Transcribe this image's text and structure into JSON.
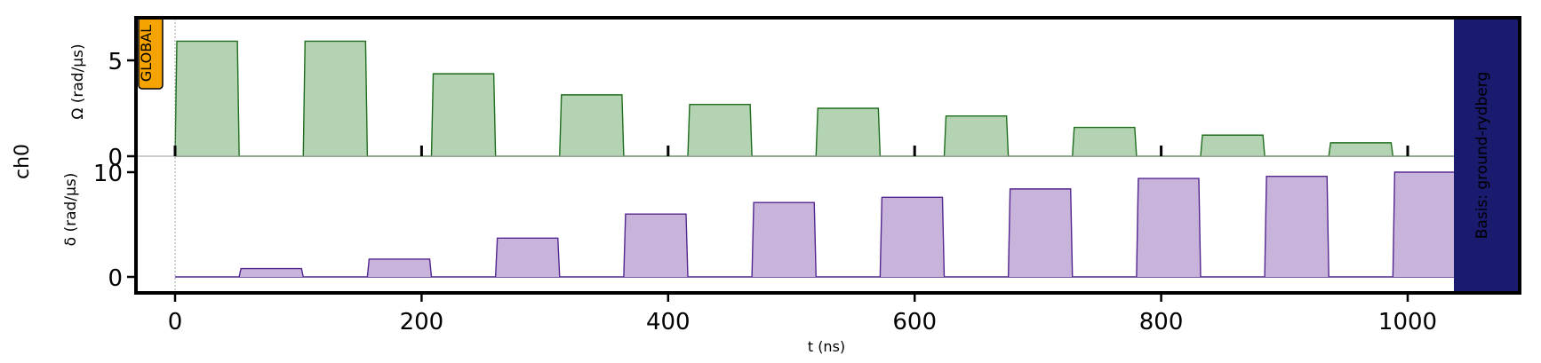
{
  "chart_data": {
    "type": "area",
    "channel_label": "ch0",
    "global_badge": "GLOBAL",
    "basis_label": "Basis: ground-rydberg",
    "xlabel": "t (ns)",
    "xlim": [
      -31,
      1091
    ],
    "x_ticks": [
      0,
      200,
      400,
      600,
      800,
      1000
    ],
    "x_minor_ticks_top": [
      0,
      200,
      400,
      600,
      800,
      1000
    ],
    "grid": false,
    "colors": {
      "omega_fill": "#b3d3b3",
      "omega_line": "#1e6e1e",
      "delta_fill": "#c8b3db",
      "delta_line": "#54278f",
      "global_badge": "#f5a300",
      "basis_band": "#1a1a6e",
      "basis_text": "#ffffff"
    },
    "panels": [
      {
        "name": "Omega",
        "ylabel": "Ω (rad/µs)",
        "ylim": [
          0,
          6.7
        ],
        "y_ticks": [
          0,
          5
        ],
        "pulse_edges_ns": [
          [
            0,
            52,
            104,
            156
          ],
          [
            208,
            260,
            312,
            364
          ],
          [
            416,
            468,
            520,
            572
          ],
          [
            624,
            676,
            728,
            780
          ],
          [
            832,
            884,
            936,
            988
          ]
        ],
        "pulse_edges_note_for_omega": "omega pulses start at 0 and every 104 ns",
        "series": []
      },
      {
        "name": "delta",
        "ylabel": "δ (rad/µs)",
        "ylim": [
          -1.5,
          10.5
        ],
        "y_ticks": [
          0,
          10
        ],
        "series": []
      }
    ],
    "omega_pulses": [
      {
        "start": 0,
        "end": 52,
        "value": 6.0
      },
      {
        "start": 104,
        "end": 156,
        "value": 6.0
      },
      {
        "start": 208,
        "end": 260,
        "value": 4.3
      },
      {
        "start": 312,
        "end": 364,
        "value": 3.2
      },
      {
        "start": 416,
        "end": 468,
        "value": 2.7
      },
      {
        "start": 520,
        "end": 572,
        "value": 2.5
      },
      {
        "start": 624,
        "end": 676,
        "value": 2.1
      },
      {
        "start": 728,
        "end": 780,
        "value": 1.5
      },
      {
        "start": 832,
        "end": 884,
        "value": 1.1
      },
      {
        "start": 936,
        "end": 988,
        "value": 0.7
      }
    ],
    "delta_pulses": [
      {
        "start": 52,
        "end": 104,
        "value": 0.8
      },
      {
        "start": 156,
        "end": 208,
        "value": 1.7
      },
      {
        "start": 260,
        "end": 312,
        "value": 3.7
      },
      {
        "start": 364,
        "end": 416,
        "value": 6.0
      },
      {
        "start": 468,
        "end": 520,
        "value": 7.1
      },
      {
        "start": 572,
        "end": 624,
        "value": 7.6
      },
      {
        "start": 676,
        "end": 728,
        "value": 8.4
      },
      {
        "start": 780,
        "end": 832,
        "value": 9.4
      },
      {
        "start": 884,
        "end": 936,
        "value": 9.6
      },
      {
        "start": 988,
        "end": 1040,
        "value": 10.0
      }
    ],
    "sequence_end_ns": 1040
  }
}
